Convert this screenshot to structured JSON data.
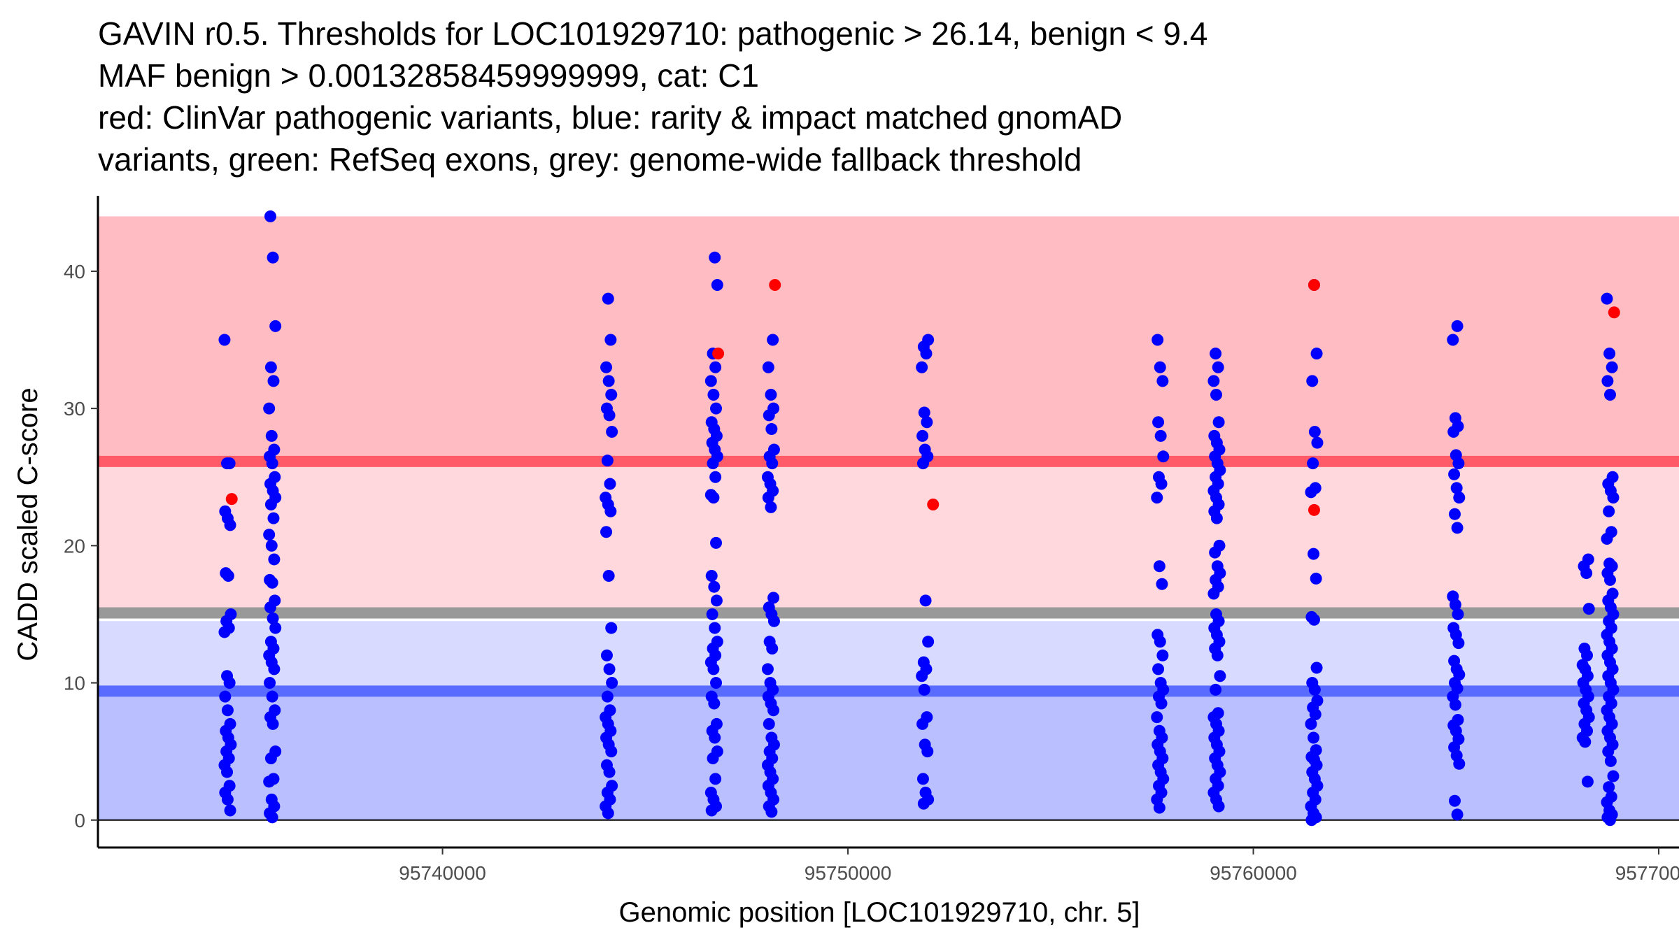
{
  "chart_data": {
    "type": "scatter",
    "title_lines": [
      "GAVIN r0.5. Thresholds for LOC101929710: pathogenic > 26.14, benign < 9.4",
      "MAF benign > 0.00132858459999999, cat: C1",
      "red: ClinVar pathogenic variants, blue: rarity & impact matched gnomAD",
      "variants, green: RefSeq exons, grey: genome-wide fallback threshold"
    ],
    "xlabel": "Genomic position [LOC101929710, chr. 5]",
    "ylabel": "CADD scaled C-score",
    "xlim": [
      95731500,
      95770500
    ],
    "ylim": [
      -2,
      45.5
    ],
    "x_ticks": [
      95740000,
      95750000,
      95760000,
      95770000
    ],
    "x_tick_labels": [
      "95740000",
      "95750000",
      "95760000",
      "95770000"
    ],
    "y_ticks": [
      0,
      10,
      20,
      30,
      40
    ],
    "y_tick_labels": [
      "0",
      "10",
      "20",
      "30",
      "40"
    ],
    "thresholds": {
      "pathogenic": 26.14,
      "benign": 9.4,
      "genome_wide_fallback": 15.1,
      "pathogenic_range_top": 44,
      "benign_range_top": 14.5
    },
    "colors": {
      "pathogenic_region": "#ffbcc3",
      "pathogenic_zone_light": "#ffd8dd",
      "benign_zone_light": "#d8dbff",
      "benign_region": "#b9bfff",
      "pathogenic_line": "#ff5a68",
      "benign_line": "#5a6cff",
      "fallback_line": "#999999",
      "gnomad_points": "#0000ff",
      "clinvar_points": "#ff0000",
      "axis": "#000000"
    },
    "series": [
      {
        "name": "ClinVar pathogenic variants",
        "color": "#ff0000",
        "points": [
          [
            95734800,
            23.4
          ],
          [
            95746800,
            34
          ],
          [
            95748200,
            39
          ],
          [
            95752100,
            23
          ],
          [
            95761500,
            39
          ],
          [
            95761500,
            22.6
          ],
          [
            95768900,
            37
          ]
        ]
      },
      {
        "name": "rarity & impact matched gnomAD variants",
        "color": "#0000ff",
        "clusters": [
          {
            "x": 95734700,
            "values": [
              35,
              26,
              26,
              22.5,
              22,
              21.5,
              18,
              17.8,
              15,
              14.5,
              14,
              13.7,
              10.5,
              10,
              9,
              8,
              7,
              6.5,
              6,
              5.5,
              5,
              4.5,
              4,
              3.5,
              2.5,
              2,
              1.5,
              0.7
            ]
          },
          {
            "x": 95735800,
            "values": [
              44,
              41,
              36,
              33,
              32,
              30,
              28,
              27,
              26.5,
              26,
              25,
              24.5,
              24,
              23.5,
              23,
              22,
              20.8,
              20,
              19,
              17.5,
              17.3,
              16,
              15.5,
              14.7,
              14,
              13,
              12.5,
              12,
              11.5,
              11,
              10,
              9,
              8,
              7.5,
              7,
              5,
              4.5,
              3,
              2.8,
              1.5,
              1,
              0.5,
              0.2
            ]
          },
          {
            "x": 95744100,
            "values": [
              38,
              35,
              33,
              32,
              31,
              30,
              29.5,
              28.3,
              26.2,
              24.5,
              23.5,
              23,
              22.5,
              21,
              17.8,
              14,
              12,
              11,
              10,
              9,
              8,
              7.5,
              7,
              6.5,
              6,
              5.5,
              5,
              4,
              3.5,
              2.5,
              2,
              1.5,
              1,
              0.5
            ]
          },
          {
            "x": 95746700,
            "values": [
              41,
              39,
              34,
              33,
              32,
              31,
              30,
              29,
              28.5,
              28,
              27.5,
              27,
              26.5,
              26,
              25,
              23.7,
              23.5,
              20.2,
              17.8,
              17,
              16,
              15,
              14,
              13,
              12.5,
              12,
              11.5,
              11,
              10,
              9,
              8.5,
              7,
              6.5,
              6,
              5,
              4.5,
              3,
              2,
              1.5,
              1,
              0.7
            ]
          },
          {
            "x": 95748100,
            "values": [
              35,
              33,
              31,
              30,
              29.5,
              28.5,
              27,
              26.5,
              26,
              25,
              24.5,
              24,
              23.5,
              22.8,
              16.2,
              15.5,
              15,
              14.5,
              13,
              12.5,
              11,
              10,
              9.5,
              9,
              8.5,
              8,
              7,
              6,
              5.5,
              5,
              4.5,
              4,
              3.5,
              3,
              2.5,
              2,
              1.5,
              1,
              0.6
            ]
          },
          {
            "x": 95751900,
            "values": [
              35,
              34.5,
              34,
              33,
              29.7,
              29,
              28,
              27,
              26.5,
              26,
              16,
              13,
              11.5,
              11,
              10.5,
              9.5,
              7.5,
              7,
              5.5,
              5,
              3,
              2,
              1.5,
              1.2
            ]
          },
          {
            "x": 95757700,
            "values": [
              35,
              33,
              32,
              29,
              28,
              26.5,
              25,
              24.5,
              23.5,
              18.5,
              17.2,
              13.5,
              13,
              12,
              11,
              10,
              9.5,
              9,
              8.5,
              7.5,
              6.5,
              6,
              5.5,
              5,
              4.5,
              4,
              3.5,
              3,
              2.5,
              2,
              1.5,
              0.9
            ]
          },
          {
            "x": 95759100,
            "values": [
              34,
              33,
              32,
              31,
              29,
              28,
              27.5,
              27,
              26.5,
              26,
              25.5,
              25,
              24.5,
              24,
              23.5,
              23,
              22.5,
              22,
              20,
              19.5,
              18.5,
              18,
              17.5,
              17,
              16.5,
              15,
              14.5,
              14,
              13.5,
              13,
              12.5,
              12,
              10.5,
              9.5,
              7.8,
              7.5,
              7,
              6.5,
              6,
              5.5,
              5,
              4.5,
              4,
              3.5,
              3,
              2.5,
              2,
              1.5,
              1
            ]
          },
          {
            "x": 95761500,
            "values": [
              39,
              34,
              32,
              28.3,
              27.5,
              26,
              24.2,
              23.9,
              19.4,
              17.6,
              14.8,
              14.6,
              11.1,
              10,
              9.5,
              8.7,
              8.2,
              7.7,
              7,
              6,
              5.1,
              4.6,
              4.4,
              4,
              3.5,
              3,
              2.5,
              2,
              1.5,
              1,
              0.5,
              0.2,
              0
            ]
          },
          {
            "x": 95765000,
            "values": [
              36,
              35,
              29.3,
              28.7,
              28.3,
              26.6,
              26,
              25.2,
              24.2,
              23.5,
              22.3,
              21.3,
              16.3,
              15.7,
              15,
              14,
              13.5,
              12.9,
              11.6,
              11,
              10.6,
              10,
              9.6,
              9,
              8.4,
              7.3,
              6.9,
              6.5,
              5.9,
              5.3,
              4.7,
              4.1,
              1.4,
              0.4
            ]
          },
          {
            "x": 95768200,
            "values": [
              19,
              18.5,
              18,
              15.4,
              12.5,
              12,
              11.3,
              11,
              10.5,
              10,
              9.5,
              9,
              8.5,
              8,
              7.5,
              7,
              6.5,
              6,
              5.7,
              2.8
            ]
          },
          {
            "x": 95768800,
            "values": [
              38,
              34,
              33,
              32,
              31,
              25,
              24.5,
              24,
              23.5,
              22.5,
              21,
              20.5,
              18.7,
              18.5,
              18,
              17.5,
              16.5,
              16,
              15.5,
              15,
              14.5,
              14,
              13.5,
              13,
              12.5,
              12,
              11.5,
              11,
              10.5,
              10,
              9.5,
              9,
              8.5,
              8,
              7.5,
              7,
              6.5,
              6,
              5.5,
              5,
              4.3,
              3.2,
              2.4,
              1.7,
              1.3,
              0.7,
              0.4,
              0.2,
              0
            ]
          }
        ]
      }
    ]
  }
}
